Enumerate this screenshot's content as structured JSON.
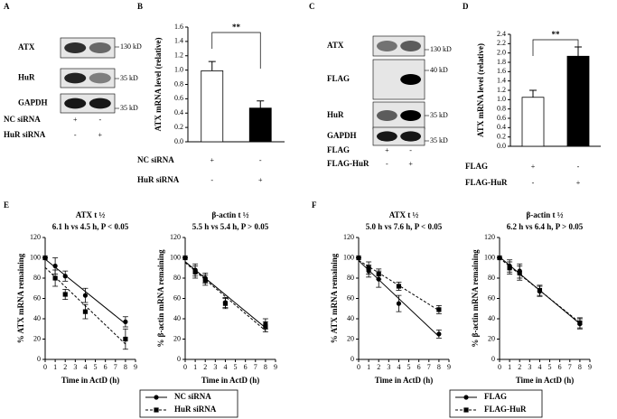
{
  "panel_labels": [
    "A",
    "B",
    "C",
    "D",
    "E",
    "F"
  ],
  "blots": [
    {
      "rows": [
        {
          "label": "ATX",
          "marker": "130 kD"
        },
        {
          "label": "HuR",
          "marker": "35 kD"
        },
        {
          "label": "GAPDH",
          "marker": "35 kD"
        }
      ],
      "conditions": [
        {
          "name": "NC siRNA",
          "signs": [
            "+",
            "-"
          ]
        },
        {
          "name": "HuR siRNA",
          "signs": [
            "-",
            "+"
          ]
        }
      ]
    },
    {
      "rows": [
        {
          "label": "ATX",
          "marker": "130 kD"
        },
        {
          "label": "FLAG",
          "marker": "40 kD"
        },
        {
          "label": "HuR",
          "marker": "35 kD"
        },
        {
          "label": "GAPDH",
          "marker": "35 kD"
        }
      ],
      "conditions": [
        {
          "name": "FLAG",
          "signs": [
            "+",
            "-"
          ]
        },
        {
          "name": "FLAG-HuR",
          "signs": [
            "-",
            "+"
          ]
        }
      ]
    }
  ],
  "chart_data": [
    {
      "type": "bar",
      "ylabel": "ATX mRNA  level (relative)",
      "categories": [
        null,
        null
      ],
      "values": [
        0.99,
        0.47
      ],
      "errors": [
        0.13,
        0.1
      ],
      "colors": [
        "#ffffff",
        "#000000"
      ],
      "ylim": [
        0,
        1.6
      ],
      "yticks": [
        {
          "value": 0,
          "label": "0.0"
        },
        0.2,
        0.4,
        0.6,
        0.8,
        {
          "value": 1,
          "label": "1.0"
        },
        1.2,
        1.4,
        1.6
      ],
      "significance": "**",
      "condition_rows": [
        {
          "name": "NC siRNA",
          "signs": [
            "+",
            "-"
          ]
        },
        {
          "name": "HuR siRNA",
          "signs": [
            "-",
            "+"
          ]
        }
      ]
    },
    {
      "type": "bar",
      "ylabel": "ATX mRNA  level (relative)",
      "categories": [
        null,
        null
      ],
      "values": [
        1.05,
        1.93
      ],
      "errors": [
        0.15,
        0.2
      ],
      "colors": [
        "#ffffff",
        "#000000"
      ],
      "ylim": [
        0,
        2.4
      ],
      "yticks": [
        {
          "value": 0,
          "label": "0.0"
        },
        0.2,
        0.4,
        0.6,
        0.8,
        {
          "value": 1,
          "label": "1.0"
        },
        1.2,
        1.4,
        1.6,
        1.8,
        {
          "value": 2,
          "label": "2.0"
        },
        2.2,
        2.4
      ],
      "significance": "**",
      "condition_rows": [
        {
          "name": "FLAG",
          "signs": [
            "+",
            "-"
          ]
        },
        {
          "name": "FLAG-HuR",
          "signs": [
            "-",
            "+"
          ]
        }
      ]
    },
    {
      "type": "line",
      "title": "ATX t ½",
      "subtitle": "6.1 h vs 4.5 h, P < 0.05",
      "xlabel": "Time in ActD (h)",
      "ylabel": "% ATX mRNA remaining",
      "x": [
        0,
        1,
        2,
        4,
        8
      ],
      "xlim": [
        0,
        9
      ],
      "xticks": [
        0,
        1,
        2,
        3,
        4,
        5,
        6,
        7,
        8,
        9
      ],
      "ylim": [
        0,
        120
      ],
      "yticks": [
        0,
        20,
        40,
        60,
        80,
        100,
        120
      ],
      "series": [
        {
          "name": "NC siRNA",
          "marker": "circle",
          "dash": false,
          "color": "#000000",
          "values": [
            100,
            92,
            82,
            63,
            37
          ],
          "errors": [
            0,
            8,
            5,
            7,
            5
          ]
        },
        {
          "name": "HuR siRNA",
          "marker": "square",
          "dash": true,
          "color": "#000000",
          "values": [
            100,
            80,
            64,
            47,
            20
          ],
          "errors": [
            0,
            8,
            5,
            7,
            10
          ]
        }
      ]
    },
    {
      "type": "line",
      "title": "β-actin t ½",
      "subtitle": "5.5 h vs 5.4 h, P > 0.05",
      "xlabel": "Time in ActD (h)",
      "ylabel": "% β-actin mRNA remaining",
      "x": [
        0,
        1,
        2,
        4,
        8
      ],
      "xlim": [
        0,
        9
      ],
      "xticks": [
        0,
        1,
        2,
        3,
        4,
        5,
        6,
        7,
        8,
        9
      ],
      "ylim": [
        0,
        120
      ],
      "yticks": [
        0,
        20,
        40,
        60,
        80,
        100,
        120
      ],
      "series": [
        {
          "marker": "circle",
          "dash": false,
          "color": "#000000",
          "values": [
            100,
            88,
            80,
            56,
            35
          ],
          "errors": [
            0,
            6,
            5,
            5,
            5
          ]
        },
        {
          "marker": "square",
          "dash": true,
          "color": "#000000",
          "values": [
            100,
            86,
            78,
            55,
            32
          ],
          "errors": [
            0,
            6,
            5,
            5,
            5
          ]
        }
      ]
    },
    {
      "type": "line",
      "title": "ATX t ½",
      "subtitle": "5.0 h vs 7.6 h, P < 0.05",
      "xlabel": "Time in ActD (h)",
      "ylabel": "% ATX mRNA remaining",
      "x": [
        0,
        1,
        2,
        4,
        8
      ],
      "xlim": [
        0,
        9
      ],
      "xticks": [
        0,
        1,
        2,
        3,
        4,
        5,
        6,
        7,
        8,
        9
      ],
      "ylim": [
        0,
        120
      ],
      "yticks": [
        0,
        20,
        40,
        60,
        80,
        100,
        120
      ],
      "series": [
        {
          "name": "FLAG",
          "marker": "circle",
          "dash": false,
          "color": "#000000",
          "values": [
            100,
            87,
            79,
            55,
            25
          ],
          "errors": [
            0,
            6,
            8,
            8,
            4
          ]
        },
        {
          "name": "FLAG-HuR",
          "marker": "square",
          "dash": true,
          "color": "#000000",
          "values": [
            100,
            90,
            84,
            72,
            49
          ],
          "errors": [
            0,
            6,
            5,
            4,
            4
          ]
        }
      ]
    },
    {
      "type": "line",
      "title": "β-actin t ½",
      "subtitle": "6.2 h vs 6.4 h, P > 0.05",
      "xlabel": "Time in ActD (h)",
      "ylabel": "% β-actin mRNA remaining",
      "x": [
        0,
        1,
        2,
        4,
        8
      ],
      "xlim": [
        0,
        9
      ],
      "xticks": [
        0,
        1,
        2,
        3,
        4,
        5,
        6,
        7,
        8,
        9
      ],
      "ylim": [
        0,
        120
      ],
      "yticks": [
        0,
        20,
        40,
        60,
        80,
        100,
        120
      ],
      "series": [
        {
          "marker": "circle",
          "dash": false,
          "color": "#000000",
          "values": [
            100,
            92,
            87,
            67,
            35
          ],
          "errors": [
            0,
            6,
            7,
            5,
            5
          ]
        },
        {
          "marker": "square",
          "dash": true,
          "color": "#000000",
          "values": [
            100,
            90,
            85,
            68,
            36
          ],
          "errors": [
            0,
            6,
            7,
            5,
            5
          ]
        }
      ]
    }
  ]
}
